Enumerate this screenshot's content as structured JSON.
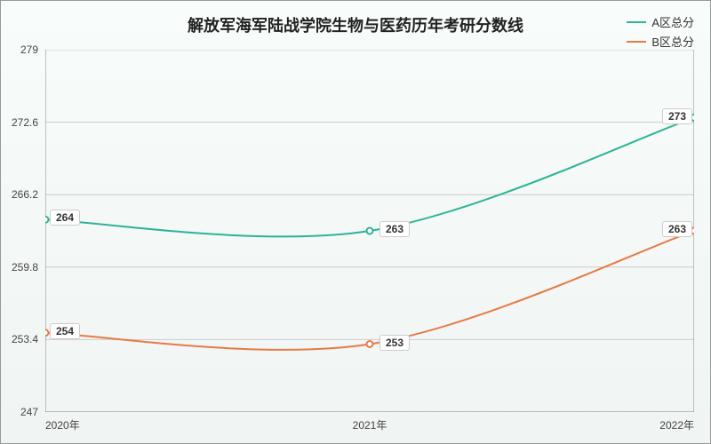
{
  "chart": {
    "type": "line",
    "title": "解放军海军陆战学院生物与医药历年考研分数线",
    "title_fontsize": 18,
    "background_gradient": [
      "#f8fcfa",
      "#f0f4f2"
    ],
    "grid_color": "#cccccc",
    "axis_color": "#888888",
    "text_color": "#333333",
    "label_fontsize": 12,
    "ylim": [
      247,
      279
    ],
    "yticks": [
      247,
      253.4,
      259.8,
      266.2,
      272.6,
      279
    ],
    "x_categories": [
      "2020年",
      "2021年",
      "2022年"
    ],
    "series": [
      {
        "name": "A区总分",
        "color": "#2eb397",
        "line_width": 2,
        "values": [
          264,
          263,
          273
        ],
        "smooth": true
      },
      {
        "name": "B区总分",
        "color": "#e67a47",
        "line_width": 2,
        "values": [
          254,
          253,
          263
        ],
        "smooth": true
      }
    ]
  }
}
